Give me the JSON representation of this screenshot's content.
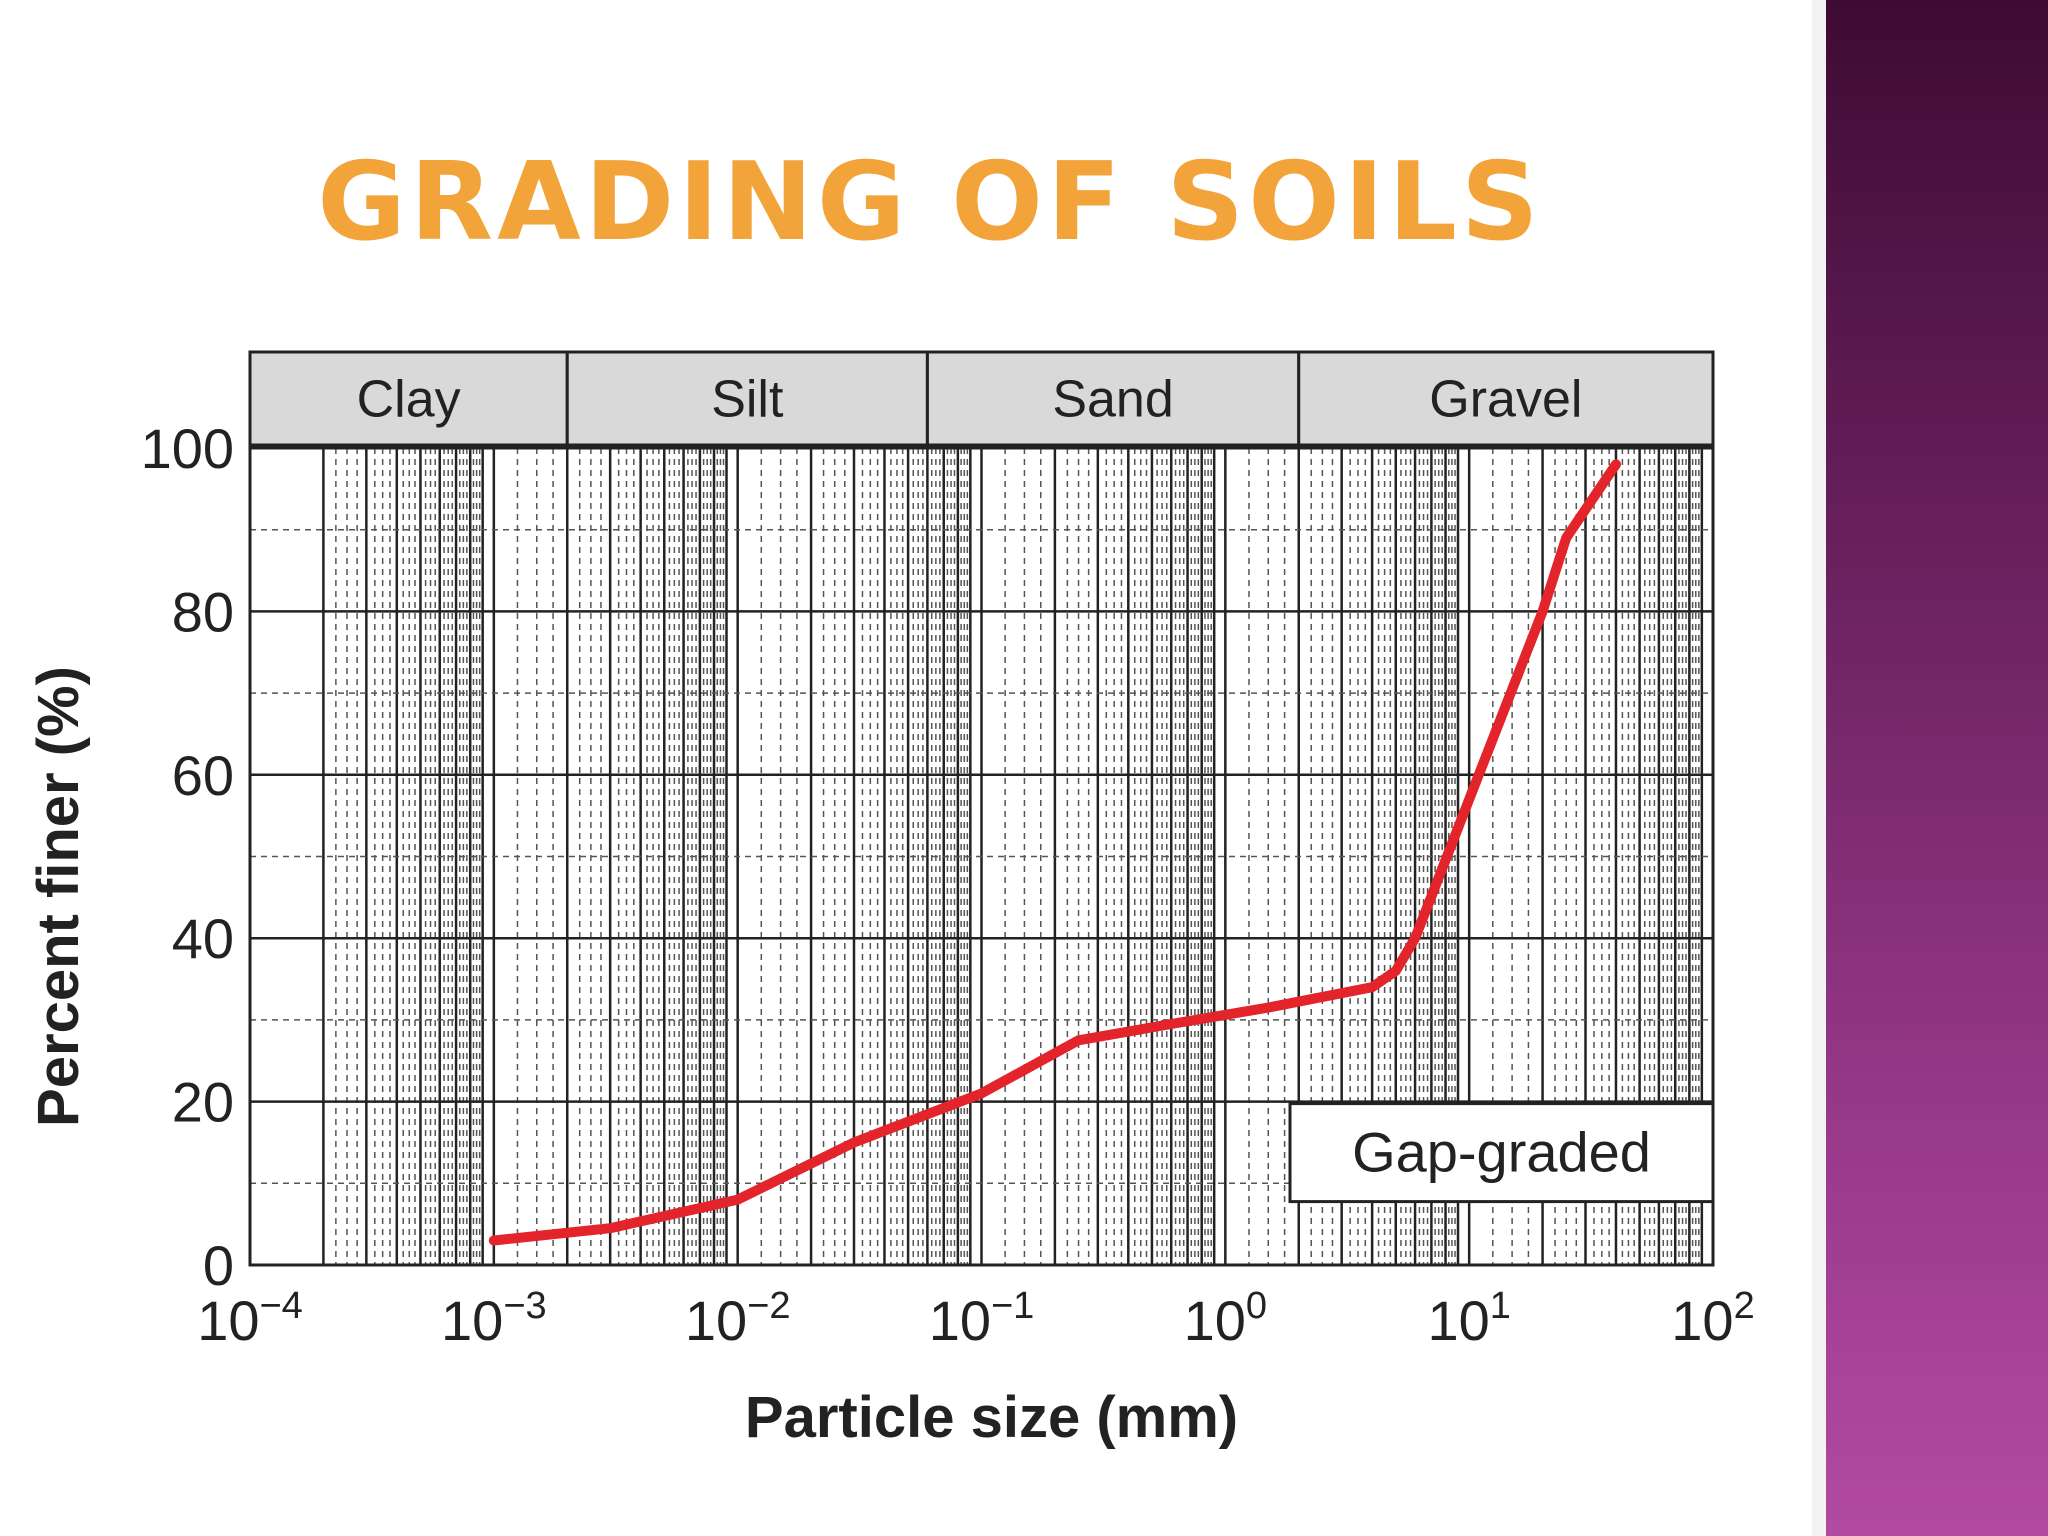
{
  "slide": {
    "title": "GRADING OF SOILS",
    "accent_color": "#f2a33a",
    "sidebar_colors": [
      "#3e0b34",
      "#b24aa2"
    ]
  },
  "chart_data": {
    "type": "line",
    "x_scale": "log",
    "xlabel": "Particle size (mm)",
    "ylabel": "Percent finer (%)",
    "xlim": [
      0.0001,
      100
    ],
    "ylim": [
      0,
      100
    ],
    "x_ticks": [
      {
        "value": 0.0001,
        "base": "10",
        "exp": "−4"
      },
      {
        "value": 0.001,
        "base": "10",
        "exp": "−3"
      },
      {
        "value": 0.01,
        "base": "10",
        "exp": "−2"
      },
      {
        "value": 0.1,
        "base": "10",
        "exp": "−1"
      },
      {
        "value": 1,
        "base": "10",
        "exp": "0"
      },
      {
        "value": 10,
        "base": "10",
        "exp": "1"
      },
      {
        "value": 100,
        "base": "10",
        "exp": "2"
      }
    ],
    "y_ticks": [
      0,
      20,
      40,
      60,
      80,
      100
    ],
    "grid": true,
    "soil_classes": [
      {
        "name": "Clay",
        "from": 0.0001,
        "to": 0.002
      },
      {
        "name": "Silt",
        "from": 0.002,
        "to": 0.06
      },
      {
        "name": "Sand",
        "from": 0.06,
        "to": 2
      },
      {
        "name": "Gravel",
        "from": 2,
        "to": 60
      }
    ],
    "annotation": "Gap-graded",
    "line_color": "#e3242b",
    "series": [
      {
        "x": [
          0.001,
          0.003,
          0.01,
          0.03,
          0.1,
          0.25,
          0.6,
          1.5,
          4,
          5,
          6,
          10,
          20,
          25,
          40
        ],
        "y": [
          3,
          4.5,
          8,
          15,
          21,
          27.5,
          29.5,
          31.5,
          34,
          36,
          40,
          57,
          80,
          89,
          98
        ]
      }
    ]
  }
}
